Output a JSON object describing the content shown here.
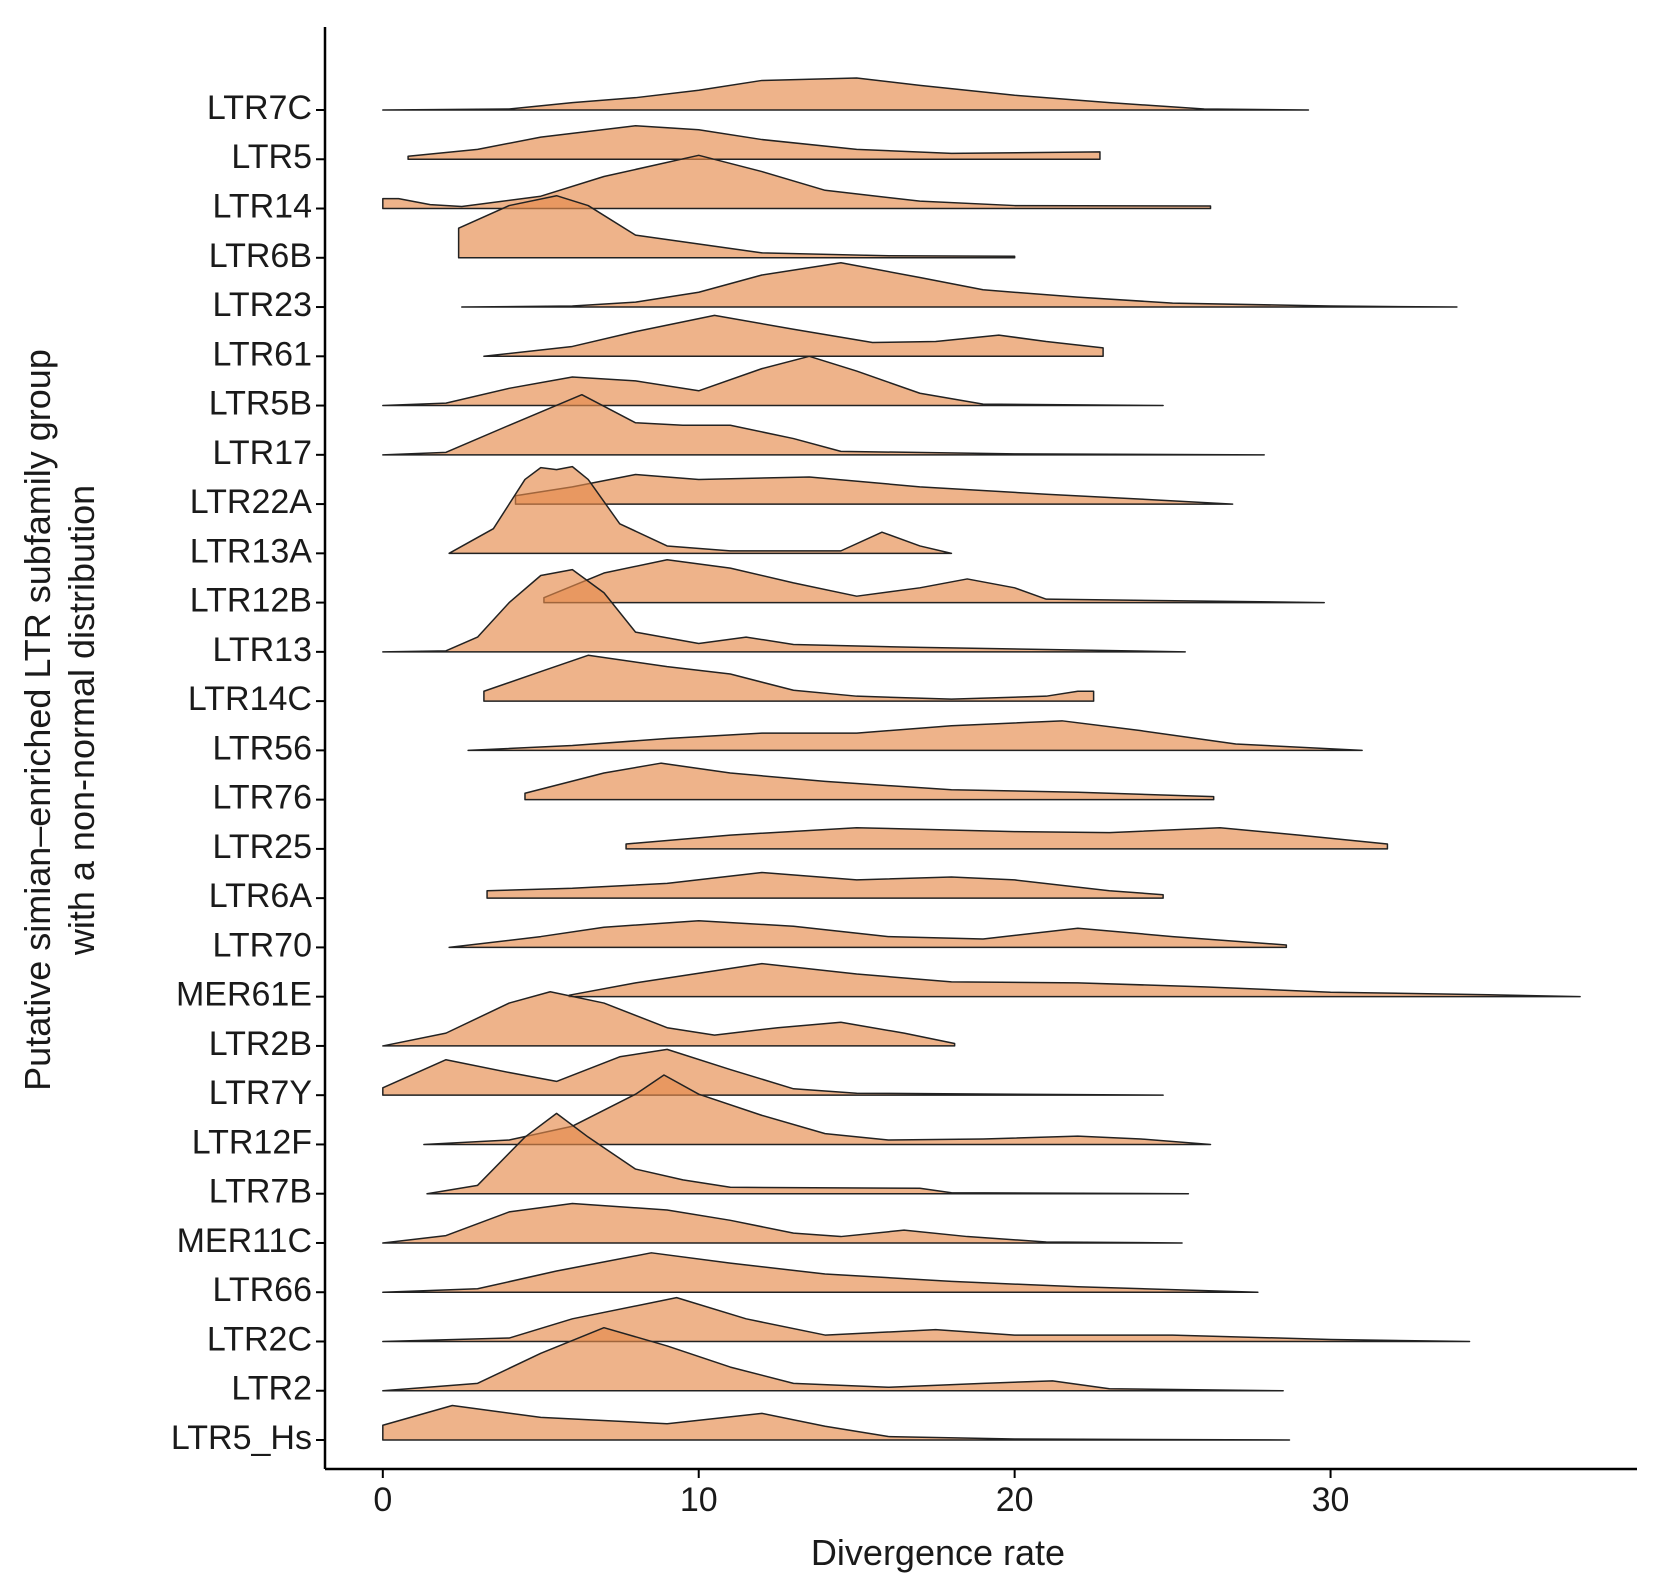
{
  "chart_data": {
    "type": "ridgeline",
    "x_label": "Divergence rate",
    "y_label": [
      "Putative simian–enriched LTR subfamily group",
      "with a non-normal distribution"
    ],
    "xlim": [
      -1.83,
      39.7
    ],
    "xticks": [
      0,
      10,
      20,
      30
    ],
    "color": "#e58b4b",
    "series": [
      {
        "name": "LTR7C",
        "x": [
          0,
          4,
          6,
          8,
          10,
          12,
          15,
          17,
          20,
          23,
          26,
          29.3
        ],
        "values": [
          0,
          0.02,
          0.15,
          0.25,
          0.4,
          0.6,
          0.65,
          0.5,
          0.3,
          0.15,
          0.02,
          0
        ]
      },
      {
        "name": "LTR5",
        "x": [
          0.8,
          3,
          5,
          8,
          10,
          12,
          15,
          18,
          22.7
        ],
        "values": [
          0.06,
          0.2,
          0.45,
          0.68,
          0.6,
          0.4,
          0.2,
          0.12,
          0.15
        ]
      },
      {
        "name": "LTR14",
        "x": [
          0,
          0.5,
          1.5,
          2.5,
          5,
          7,
          10,
          12,
          14,
          17,
          20,
          26.2
        ],
        "values": [
          0.2,
          0.2,
          0.08,
          0.04,
          0.25,
          0.65,
          1.08,
          0.75,
          0.37,
          0.15,
          0.06,
          0.05
        ]
      },
      {
        "name": "LTR6B",
        "x": [
          2.4,
          4,
          5.5,
          6.5,
          8,
          10,
          12,
          16,
          20
        ],
        "values": [
          0.6,
          1.06,
          1.26,
          1.06,
          0.46,
          0.28,
          0.1,
          0.04,
          0.03
        ]
      },
      {
        "name": "LTR23",
        "x": [
          2.5,
          6,
          8,
          10,
          12,
          14.5,
          17,
          19,
          22,
          25,
          30,
          34
        ],
        "values": [
          0,
          0.02,
          0.1,
          0.3,
          0.65,
          0.9,
          0.6,
          0.35,
          0.2,
          0.08,
          0.02,
          0
        ]
      },
      {
        "name": "LTR61",
        "x": [
          3.2,
          6,
          8,
          10.5,
          13,
          15.5,
          17.5,
          19.5,
          21,
          22.8
        ],
        "values": [
          0,
          0.2,
          0.5,
          0.83,
          0.55,
          0.28,
          0.3,
          0.43,
          0.3,
          0.17
        ]
      },
      {
        "name": "LTR5B",
        "x": [
          0,
          2,
          4,
          6,
          8,
          10,
          12,
          13.5,
          15,
          17,
          19,
          24.7
        ],
        "values": [
          0,
          0.05,
          0.35,
          0.58,
          0.5,
          0.3,
          0.75,
          1.0,
          0.7,
          0.25,
          0.03,
          0
        ]
      },
      {
        "name": "LTR17",
        "x": [
          0,
          2,
          4,
          6.3,
          8,
          9.5,
          11,
          13,
          14.5,
          20,
          27.9
        ],
        "values": [
          0,
          0.05,
          0.6,
          1.22,
          0.65,
          0.6,
          0.6,
          0.33,
          0.07,
          0.02,
          0
        ]
      },
      {
        "name": "LTR22A",
        "x": [
          4.2,
          6,
          8,
          10,
          13.5,
          17,
          21,
          24,
          26.9
        ],
        "values": [
          0.17,
          0.35,
          0.6,
          0.5,
          0.55,
          0.35,
          0.2,
          0.1,
          0
        ]
      },
      {
        "name": "LTR13A",
        "x": [
          2.1,
          3.5,
          4.5,
          5,
          5.5,
          6,
          6.5,
          7.5,
          9,
          11,
          14.5,
          15.8,
          17,
          18
        ],
        "values": [
          0,
          0.5,
          1.5,
          1.74,
          1.7,
          1.76,
          1.5,
          0.6,
          0.15,
          0.05,
          0.05,
          0.43,
          0.15,
          0
        ]
      },
      {
        "name": "LTR12B",
        "x": [
          5.1,
          7,
          9,
          11,
          13,
          15,
          17,
          18.5,
          20,
          21,
          29.8
        ],
        "values": [
          0.1,
          0.6,
          0.87,
          0.7,
          0.4,
          0.13,
          0.3,
          0.48,
          0.3,
          0.07,
          0
        ]
      },
      {
        "name": "LTR13",
        "x": [
          0,
          2,
          3,
          4,
          5,
          6,
          7,
          8,
          10,
          11.5,
          13,
          17,
          25.4
        ],
        "values": [
          0,
          0.02,
          0.3,
          1.0,
          1.55,
          1.67,
          1.2,
          0.4,
          0.17,
          0.3,
          0.15,
          0.09,
          0
        ]
      },
      {
        "name": "LTR14C",
        "x": [
          3.2,
          5,
          6.5,
          9,
          11,
          13,
          15,
          18,
          21,
          22,
          22.5
        ],
        "values": [
          0.2,
          0.6,
          0.93,
          0.7,
          0.55,
          0.22,
          0.1,
          0.04,
          0.1,
          0.2,
          0.2
        ]
      },
      {
        "name": "LTR56",
        "x": [
          2.7,
          6,
          9,
          12,
          15,
          18,
          21.5,
          24,
          27,
          31
        ],
        "values": [
          0,
          0.1,
          0.24,
          0.35,
          0.35,
          0.5,
          0.6,
          0.4,
          0.13,
          0
        ]
      },
      {
        "name": "LTR76",
        "x": [
          4.5,
          7,
          8.8,
          11,
          14,
          18,
          22,
          26.3
        ],
        "values": [
          0.13,
          0.54,
          0.74,
          0.54,
          0.37,
          0.2,
          0.15,
          0.06
        ]
      },
      {
        "name": "LTR25",
        "x": [
          7.7,
          11,
          15,
          20,
          23,
          26.5,
          29,
          31.8
        ],
        "values": [
          0.1,
          0.28,
          0.43,
          0.35,
          0.33,
          0.43,
          0.28,
          0.1
        ]
      },
      {
        "name": "LTR6A",
        "x": [
          3.3,
          6,
          9,
          12,
          15,
          18,
          20,
          23,
          24.7
        ],
        "values": [
          0.15,
          0.2,
          0.3,
          0.52,
          0.37,
          0.43,
          0.37,
          0.15,
          0.07
        ]
      },
      {
        "name": "LTR70",
        "x": [
          2.1,
          5,
          7,
          10,
          13,
          16,
          19,
          22,
          25,
          28.6
        ],
        "values": [
          0,
          0.22,
          0.41,
          0.54,
          0.43,
          0.22,
          0.17,
          0.39,
          0.22,
          0.05
        ]
      },
      {
        "name": "MER61E",
        "x": [
          5.9,
          8,
          12,
          15,
          18,
          22,
          26,
          30,
          35,
          37.9
        ],
        "values": [
          0.03,
          0.28,
          0.67,
          0.46,
          0.3,
          0.28,
          0.2,
          0.09,
          0.04,
          0
        ]
      },
      {
        "name": "LTR2B",
        "x": [
          0,
          2,
          4,
          5.3,
          7,
          9,
          10.5,
          12.5,
          14.5,
          16.5,
          18.1
        ],
        "values": [
          0,
          0.26,
          0.87,
          1.1,
          0.87,
          0.37,
          0.22,
          0.37,
          0.48,
          0.26,
          0.05
        ]
      },
      {
        "name": "LTR7Y",
        "x": [
          0,
          2,
          4,
          5.5,
          7.5,
          9,
          11,
          13,
          15,
          24.7
        ],
        "values": [
          0.15,
          0.72,
          0.46,
          0.28,
          0.78,
          0.93,
          0.52,
          0.13,
          0.04,
          0
        ]
      },
      {
        "name": "LTR12F",
        "x": [
          1.3,
          4,
          6,
          8,
          8.9,
          10,
          12,
          14,
          16,
          19,
          22,
          24,
          26.2
        ],
        "values": [
          0,
          0.09,
          0.37,
          1.02,
          1.41,
          1.02,
          0.59,
          0.22,
          0.09,
          0.11,
          0.17,
          0.11,
          0
        ]
      },
      {
        "name": "LTR7B",
        "x": [
          1.4,
          3,
          4.5,
          5.5,
          6.5,
          8,
          9.5,
          11,
          17,
          18,
          25.5
        ],
        "values": [
          0,
          0.17,
          1.15,
          1.63,
          1.15,
          0.5,
          0.28,
          0.13,
          0.11,
          0.02,
          0
        ]
      },
      {
        "name": "MER11C",
        "x": [
          0,
          2,
          4,
          6,
          9,
          11,
          13,
          14.5,
          16.5,
          18.5,
          21,
          25.3
        ],
        "values": [
          0,
          0.15,
          0.63,
          0.8,
          0.67,
          0.46,
          0.2,
          0.13,
          0.26,
          0.13,
          0.02,
          0
        ]
      },
      {
        "name": "LTR66",
        "x": [
          0,
          3,
          5.5,
          8.5,
          11,
          14,
          18,
          22,
          27.7
        ],
        "values": [
          0,
          0.07,
          0.43,
          0.8,
          0.59,
          0.37,
          0.22,
          0.11,
          0
        ]
      },
      {
        "name": "LTR2C",
        "x": [
          0,
          4,
          6,
          9.3,
          11.5,
          14,
          17.5,
          20,
          25,
          30,
          34.4
        ],
        "values": [
          0,
          0.07,
          0.46,
          0.89,
          0.46,
          0.13,
          0.24,
          0.13,
          0.13,
          0.04,
          0
        ]
      },
      {
        "name": "LTR2",
        "x": [
          0,
          3,
          5,
          7,
          9,
          11,
          13,
          16,
          19,
          21.2,
          23,
          28.5
        ],
        "values": [
          0,
          0.15,
          0.76,
          1.28,
          0.91,
          0.48,
          0.15,
          0.07,
          0.15,
          0.2,
          0.04,
          0
        ]
      },
      {
        "name": "LTR5_Hs",
        "x": [
          0,
          2.2,
          5,
          9,
          12,
          14,
          16,
          20,
          28.7
        ],
        "values": [
          0.3,
          0.7,
          0.46,
          0.33,
          0.54,
          0.28,
          0.07,
          0.02,
          0
        ]
      }
    ]
  }
}
